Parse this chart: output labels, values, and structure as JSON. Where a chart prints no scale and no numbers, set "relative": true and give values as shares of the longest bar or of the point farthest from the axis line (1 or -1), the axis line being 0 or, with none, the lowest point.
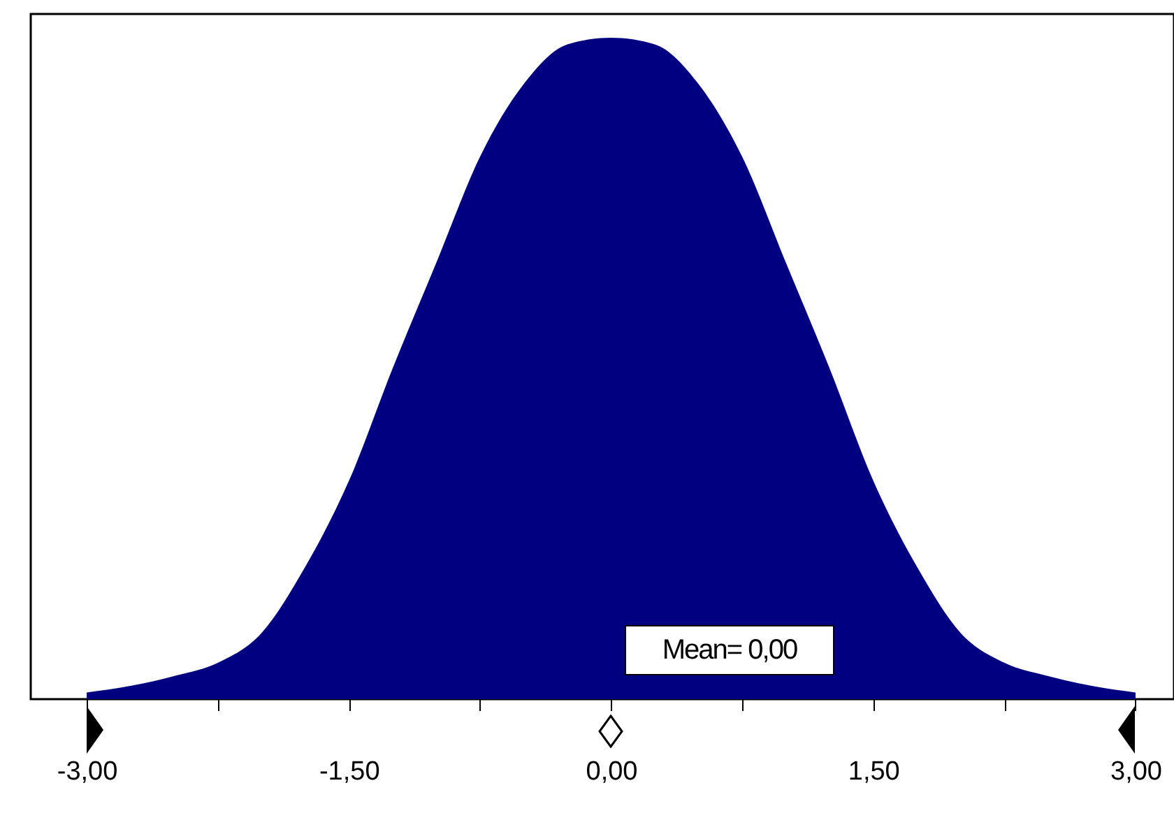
{
  "chart_data": {
    "type": "area",
    "relative": true,
    "color": "#000080",
    "x": [
      -3,
      -2.75,
      -2.5,
      -2.25,
      -2,
      -1.75,
      -1.5,
      -1.25,
      -1,
      -0.75,
      -0.5,
      -0.25,
      0,
      0.25,
      0.5,
      0.75,
      1,
      1.25,
      1.5,
      1.75,
      2,
      2.25,
      2.5,
      2.75,
      3
    ],
    "values": [
      0.01,
      0.02,
      0.035,
      0.055,
      0.1,
      0.2,
      0.33,
      0.5,
      0.66,
      0.82,
      0.93,
      0.99,
      1,
      0.99,
      0.93,
      0.82,
      0.66,
      0.5,
      0.33,
      0.2,
      0.1,
      0.055,
      0.035,
      0.02,
      0.01
    ],
    "xlim": [
      -3.32,
      3.22
    ],
    "xticks": [
      {
        "value": -3,
        "label": "-3,00"
      },
      {
        "value": -2.25,
        "label": null
      },
      {
        "value": -1.5,
        "label": "-1,50"
      },
      {
        "value": -0.75,
        "label": null
      },
      {
        "value": 0,
        "label": "0,00"
      },
      {
        "value": 0.75,
        "label": null
      },
      {
        "value": 1.5,
        "label": "1,50"
      },
      {
        "value": 2.25,
        "label": null
      },
      {
        "value": 3,
        "label": "3,00"
      }
    ],
    "annotations": [
      "Mean= 0,00"
    ],
    "grid": false
  }
}
